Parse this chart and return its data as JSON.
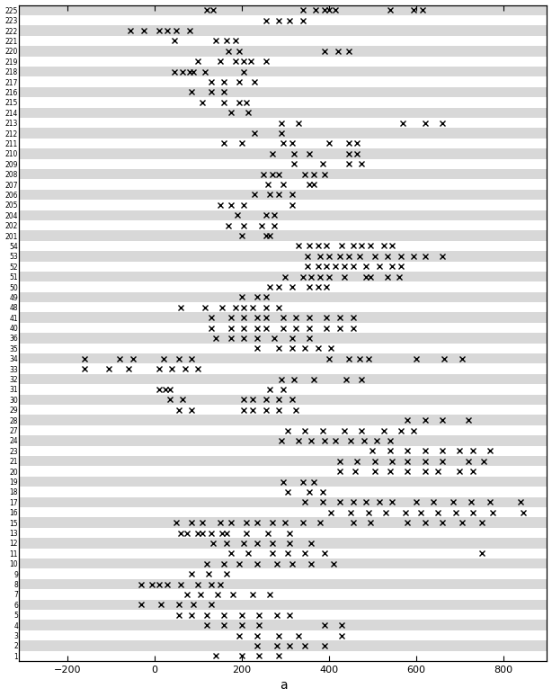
{
  "xlabel": "a",
  "xlim": [
    -310,
    900
  ],
  "xticks": [
    -200,
    0,
    200,
    400,
    600,
    800
  ],
  "ytick_labels": [
    225,
    223,
    222,
    221,
    220,
    219,
    218,
    217,
    216,
    215,
    214,
    213,
    212,
    211,
    210,
    209,
    208,
    207,
    206,
    205,
    204,
    202,
    201,
    54,
    53,
    52,
    51,
    50,
    49,
    48,
    41,
    40,
    36,
    35,
    34,
    33,
    32,
    31,
    30,
    29,
    28,
    27,
    24,
    23,
    21,
    20,
    19,
    18,
    17,
    16,
    15,
    13,
    12,
    11,
    10,
    9,
    8,
    7,
    6,
    5,
    4,
    3,
    2,
    1
  ],
  "points": {
    "225": [
      120,
      135,
      340,
      370,
      390,
      400,
      415,
      540,
      595,
      615
    ],
    "223": [
      255,
      285,
      310,
      340
    ],
    "222": [
      -55,
      -25,
      10,
      30,
      50,
      80
    ],
    "221": [
      45,
      140,
      165,
      185
    ],
    "220": [
      170,
      195,
      390,
      420,
      445
    ],
    "219": [
      100,
      150,
      185,
      205,
      220,
      255
    ],
    "218": [
      45,
      65,
      80,
      90,
      115,
      205
    ],
    "217": [
      130,
      160,
      195,
      230
    ],
    "216": [
      85,
      130,
      160
    ],
    "215": [
      110,
      160,
      195,
      210
    ],
    "214": [
      175,
      215
    ],
    "213": [
      290,
      330,
      570,
      620,
      660
    ],
    "212": [
      230,
      290
    ],
    "211": [
      160,
      200,
      295,
      315,
      400,
      445,
      465
    ],
    "210": [
      270,
      320,
      355,
      445,
      465
    ],
    "209": [
      320,
      385,
      445,
      475
    ],
    "208": [
      250,
      270,
      285,
      345,
      365,
      390
    ],
    "207": [
      260,
      295,
      355,
      365
    ],
    "206": [
      230,
      265,
      285,
      315
    ],
    "205": [
      150,
      175,
      205,
      315
    ],
    "204": [
      190,
      255,
      275
    ],
    "202": [
      170,
      205,
      245,
      275
    ],
    "201": [
      200,
      255,
      265
    ],
    "54": [
      330,
      355,
      375,
      395,
      430,
      455,
      475,
      495,
      525,
      545
    ],
    "53": [
      350,
      380,
      400,
      425,
      445,
      470,
      505,
      535,
      565,
      595,
      620,
      660
    ],
    "52": [
      350,
      375,
      395,
      415,
      435,
      455,
      485,
      515,
      545,
      565
    ],
    "51": [
      300,
      340,
      360,
      380,
      400,
      435,
      485,
      495,
      535,
      560
    ],
    "50": [
      265,
      285,
      315,
      355,
      375,
      395
    ],
    "49": [
      200,
      235,
      255
    ],
    "48": [
      60,
      115,
      155,
      185,
      205,
      225,
      255,
      285
    ],
    "41": [
      130,
      175,
      205,
      235,
      255,
      295,
      325,
      355,
      395,
      425,
      455
    ],
    "40": [
      130,
      175,
      205,
      235,
      255,
      295,
      325,
      355,
      395,
      425,
      455
    ],
    "36": [
      140,
      175,
      205,
      235,
      275,
      315,
      355
    ],
    "35": [
      235,
      285,
      315,
      345,
      375,
      405
    ],
    "34": [
      -160,
      -80,
      -50,
      20,
      55,
      85,
      400,
      445,
      470,
      490,
      600,
      665,
      705
    ],
    "33": [
      -160,
      -105,
      -60,
      10,
      40,
      70,
      100
    ],
    "32": [
      290,
      320,
      365,
      440,
      475
    ],
    "31": [
      10,
      25,
      35,
      265,
      295
    ],
    "30": [
      35,
      65,
      205,
      225,
      255,
      285,
      315
    ],
    "29": [
      55,
      85,
      205,
      225,
      255,
      285,
      325
    ],
    "28": [
      580,
      620,
      660,
      720
    ],
    "27": [
      305,
      345,
      385,
      435,
      475,
      525,
      565,
      595
    ],
    "24": [
      290,
      330,
      360,
      390,
      415,
      450,
      480,
      510,
      540
    ],
    "23": [
      500,
      540,
      580,
      620,
      660,
      700,
      730,
      770
    ],
    "21": [
      425,
      465,
      505,
      545,
      580,
      620,
      660,
      720,
      755
    ],
    "20": [
      425,
      460,
      505,
      540,
      580,
      620,
      650,
      700,
      730
    ],
    "19": [
      295,
      340,
      365
    ],
    "18": [
      305,
      355,
      385
    ],
    "17": [
      345,
      385,
      425,
      455,
      485,
      515,
      545,
      600,
      640,
      685,
      725,
      770,
      840
    ],
    "16": [
      405,
      450,
      490,
      530,
      575,
      610,
      650,
      690,
      730,
      775,
      845
    ],
    "15": [
      50,
      85,
      110,
      150,
      175,
      210,
      235,
      270,
      300,
      340,
      380,
      455,
      495,
      580,
      620,
      660,
      705,
      750
    ],
    "13": [
      60,
      75,
      100,
      110,
      130,
      155,
      165,
      210,
      260,
      310
    ],
    "12": [
      135,
      165,
      205,
      235,
      270,
      310,
      360
    ],
    "11": [
      175,
      215,
      270,
      305,
      345,
      390,
      750
    ],
    "10": [
      120,
      160,
      195,
      235,
      280,
      315,
      360,
      410
    ],
    "9": [
      85,
      125,
      165
    ],
    "8": [
      -30,
      -5,
      10,
      30,
      60,
      100,
      130,
      150
    ],
    "7": [
      75,
      105,
      145,
      180,
      225,
      265
    ],
    "6": [
      -30,
      15,
      55,
      90,
      130
    ],
    "5": [
      55,
      85,
      120,
      160,
      200,
      240,
      280,
      310
    ],
    "4": [
      120,
      160,
      200,
      240,
      390,
      430
    ],
    "3": [
      195,
      235,
      285,
      330,
      430
    ],
    "2": [
      235,
      280,
      310,
      345,
      390
    ],
    "1": [
      140,
      200,
      240,
      285
    ]
  },
  "marker": "x",
  "marker_size": 4,
  "marker_color": "#000000",
  "marker_linewidth": 1.0,
  "bg_color_odd": "#d8d8d8",
  "bg_color_even": "#ffffff",
  "xlabel_fontsize": 10,
  "ytick_fontsize": 5.5,
  "xtick_fontsize": 8,
  "fig_width": 6.14,
  "fig_height": 7.75,
  "dpi": 100
}
